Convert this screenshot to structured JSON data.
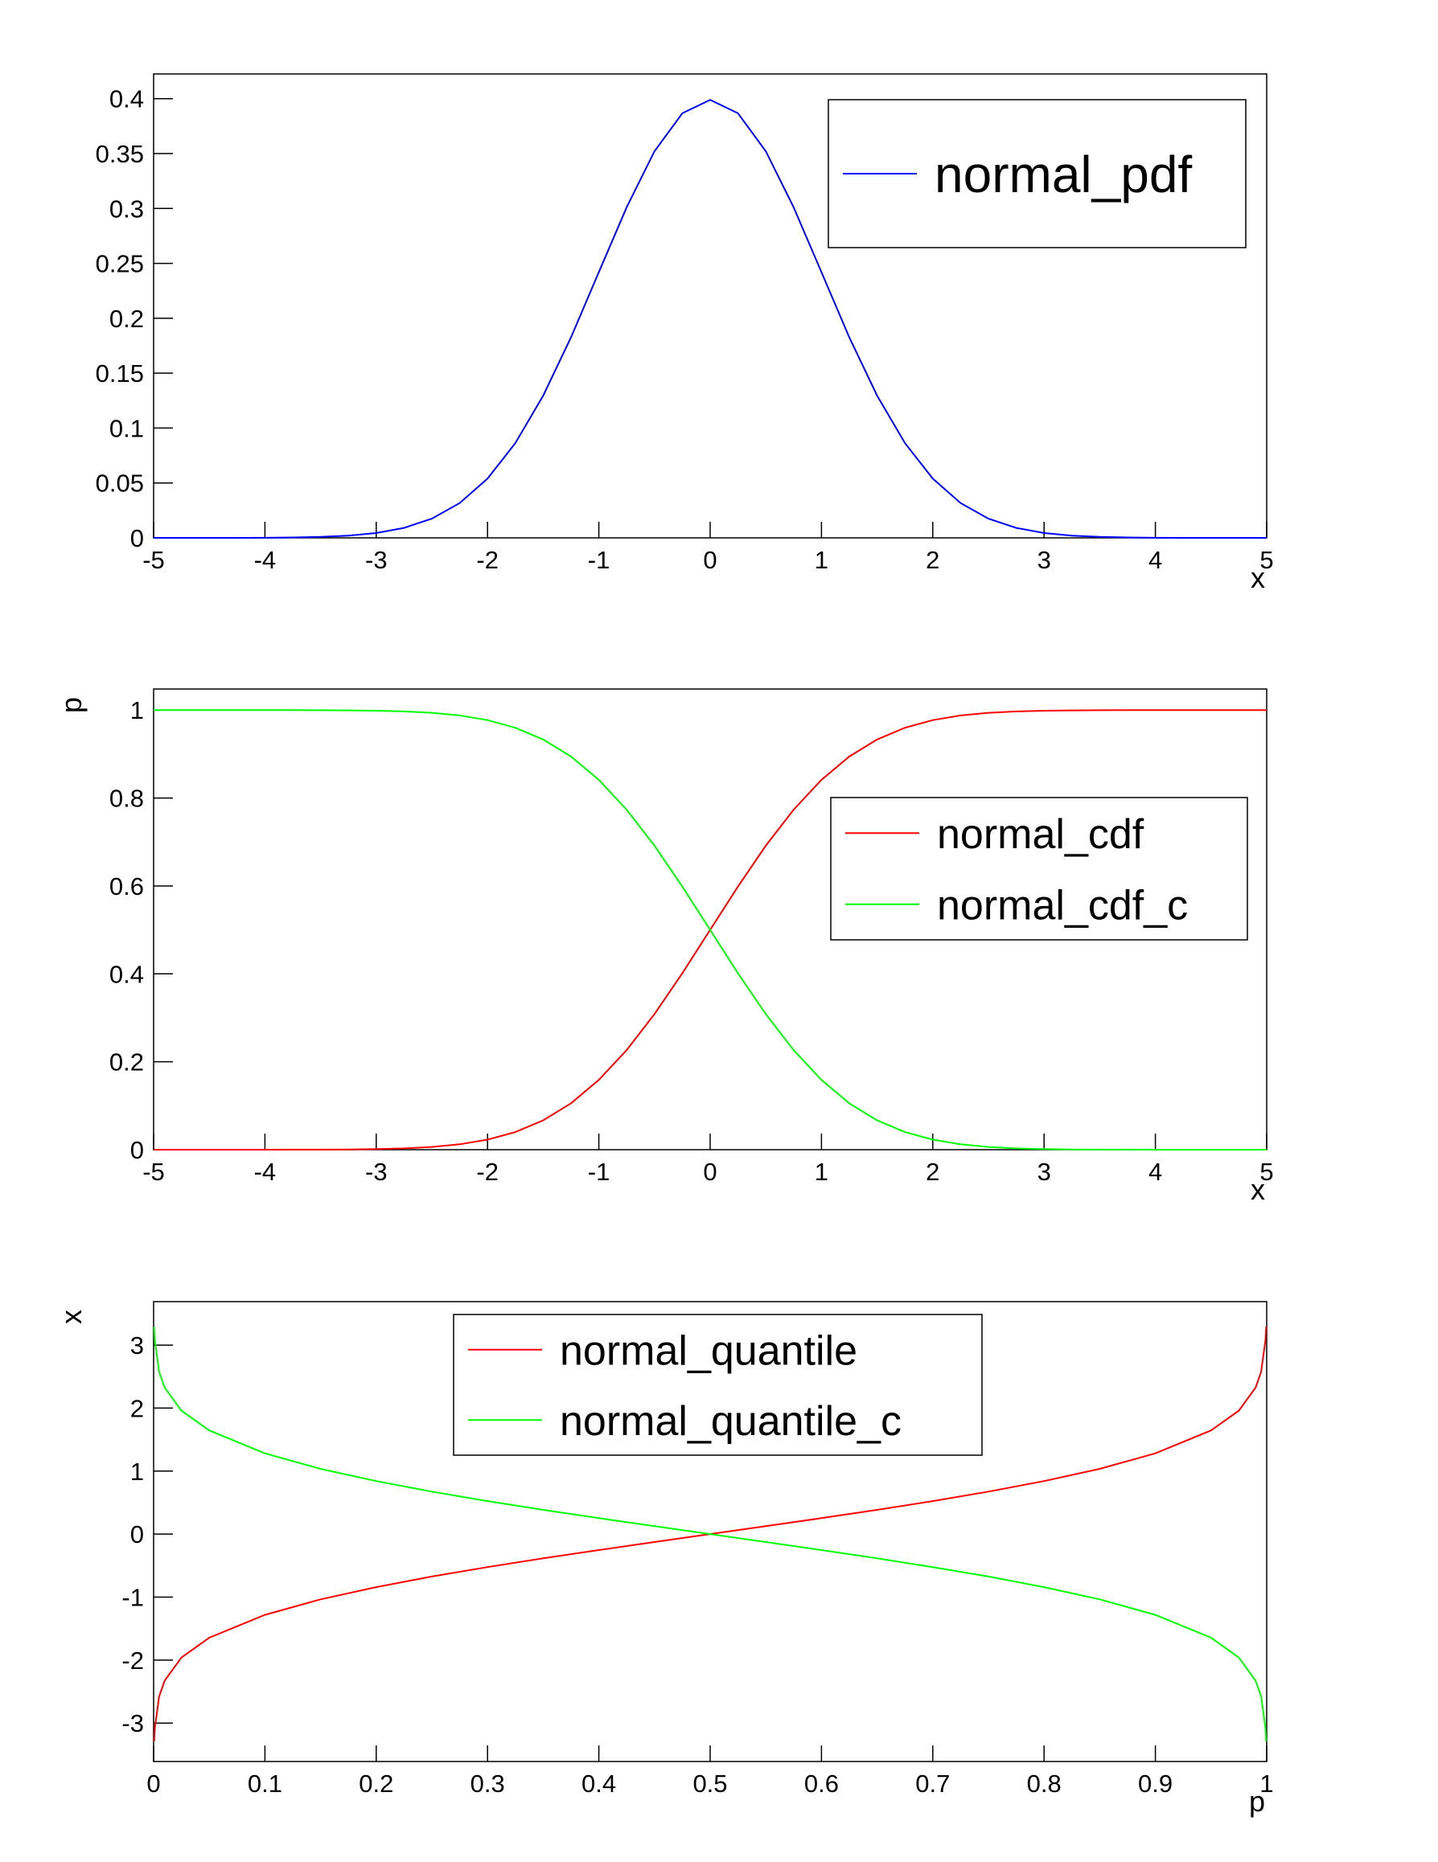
{
  "chart_data": [
    {
      "type": "line",
      "x": [
        -5,
        -4.75,
        -4.5,
        -4.25,
        -4,
        -3.75,
        -3.5,
        -3.25,
        -3,
        -2.75,
        -2.5,
        -2.25,
        -2,
        -1.75,
        -1.5,
        -1.25,
        -1,
        -0.75,
        -0.5,
        -0.25,
        0,
        0.25,
        0.5,
        0.75,
        1,
        1.25,
        1.5,
        1.75,
        2,
        2.25,
        2.5,
        2.75,
        3,
        3.25,
        3.5,
        3.75,
        4,
        4.25,
        4.5,
        4.75,
        5
      ],
      "series": [
        {
          "name": "normal_pdf",
          "color": "#0000ff",
          "values": [
            0,
            0,
            0,
            0,
            0.0001,
            0.0004,
            0.0009,
            0.002,
            0.0044,
            0.0091,
            0.0175,
            0.0317,
            0.054,
            0.0863,
            0.1295,
            0.1826,
            0.242,
            0.3011,
            0.3521,
            0.3867,
            0.3989,
            0.3867,
            0.3521,
            0.3011,
            0.242,
            0.1826,
            0.1295,
            0.0863,
            0.054,
            0.0317,
            0.0175,
            0.0091,
            0.0044,
            0.002,
            0.0009,
            0.0004,
            0.0001,
            0,
            0,
            0,
            0
          ]
        }
      ],
      "xlabel": "x",
      "xlim": [
        -5,
        5
      ],
      "ylim": [
        0,
        0.4225
      ],
      "xticks": [
        -5,
        -4,
        -3,
        -2,
        -1,
        0,
        1,
        2,
        3,
        4,
        5
      ],
      "yticks": [
        0,
        0.05,
        0.1,
        0.15,
        0.2,
        0.25,
        0.3,
        0.35,
        0.4
      ]
    },
    {
      "type": "line",
      "x": [
        -5,
        -4.75,
        -4.5,
        -4.25,
        -4,
        -3.75,
        -3.5,
        -3.25,
        -3,
        -2.75,
        -2.5,
        -2.25,
        -2,
        -1.75,
        -1.5,
        -1.25,
        -1,
        -0.75,
        -0.5,
        -0.25,
        0,
        0.25,
        0.5,
        0.75,
        1,
        1.25,
        1.5,
        1.75,
        2,
        2.25,
        2.5,
        2.75,
        3,
        3.25,
        3.5,
        3.75,
        4,
        4.25,
        4.5,
        4.75,
        5
      ],
      "series": [
        {
          "name": "normal_cdf",
          "color": "#ff0000",
          "values": [
            0,
            0,
            0,
            0,
            0,
            0.0001,
            0.0002,
            0.0006,
            0.0013,
            0.003,
            0.0062,
            0.0122,
            0.0228,
            0.0401,
            0.0668,
            0.1056,
            0.1587,
            0.2266,
            0.3085,
            0.4013,
            0.5,
            0.5987,
            0.6915,
            0.7734,
            0.8413,
            0.8944,
            0.9332,
            0.9599,
            0.9772,
            0.9878,
            0.9938,
            0.997,
            0.9987,
            0.9994,
            0.9998,
            0.9999,
            1,
            1,
            1,
            1,
            1
          ]
        },
        {
          "name": "normal_cdf_c",
          "color": "#00ff00",
          "values": [
            1,
            1,
            1,
            1,
            1,
            0.9999,
            0.9998,
            0.9994,
            0.9987,
            0.997,
            0.9938,
            0.9878,
            0.9772,
            0.9599,
            0.9332,
            0.8944,
            0.8413,
            0.7734,
            0.6915,
            0.5987,
            0.5,
            0.4013,
            0.3085,
            0.2266,
            0.1587,
            0.1056,
            0.0668,
            0.0401,
            0.0228,
            0.0122,
            0.0062,
            0.003,
            0.0013,
            0.0006,
            0.0002,
            0.0001,
            0,
            0,
            0,
            0,
            0
          ]
        }
      ],
      "xlabel": "x",
      "ylabel": "p",
      "xlim": [
        -5,
        5
      ],
      "ylim": [
        0,
        1.048
      ],
      "xticks": [
        -5,
        -4,
        -3,
        -2,
        -1,
        0,
        1,
        2,
        3,
        4,
        5
      ],
      "yticks": [
        0,
        0.2,
        0.4,
        0.6,
        0.8,
        1
      ]
    },
    {
      "type": "line",
      "x": [
        0.0005,
        0.001,
        0.005,
        0.01,
        0.025,
        0.05,
        0.1,
        0.15,
        0.2,
        0.25,
        0.3,
        0.35,
        0.4,
        0.45,
        0.5,
        0.55,
        0.6,
        0.65,
        0.7,
        0.75,
        0.8,
        0.85,
        0.9,
        0.95,
        0.975,
        0.99,
        0.995,
        0.999,
        0.9995
      ],
      "series": [
        {
          "name": "normal_quantile",
          "color": "#ff0000",
          "values": [
            -3.29,
            -3.09,
            -2.576,
            -2.326,
            -1.96,
            -1.645,
            -1.282,
            -1.036,
            -0.842,
            -0.674,
            -0.524,
            -0.385,
            -0.253,
            -0.126,
            0,
            0.126,
            0.253,
            0.385,
            0.524,
            0.674,
            0.842,
            1.036,
            1.282,
            1.645,
            1.96,
            2.326,
            2.576,
            3.09,
            3.29
          ]
        },
        {
          "name": "normal_quantile_c",
          "color": "#00ff00",
          "values": [
            3.29,
            3.09,
            2.576,
            2.326,
            1.96,
            1.645,
            1.282,
            1.036,
            0.842,
            0.674,
            0.524,
            0.385,
            0.253,
            0.126,
            0,
            -0.126,
            -0.253,
            -0.385,
            -0.524,
            -0.674,
            -0.842,
            -1.036,
            -1.282,
            -1.645,
            -1.96,
            -2.326,
            -2.576,
            -3.09,
            -3.29
          ]
        }
      ],
      "xlabel": "p",
      "ylabel": "x",
      "xlim": [
        0,
        1
      ],
      "ylim": [
        -3.61,
        3.69
      ],
      "xticks": [
        0,
        0.1,
        0.2,
        0.3,
        0.4,
        0.5,
        0.6,
        0.7,
        0.8,
        0.9,
        1
      ],
      "yticks": [
        -3,
        -2,
        -1,
        0,
        1,
        2,
        3
      ]
    }
  ]
}
